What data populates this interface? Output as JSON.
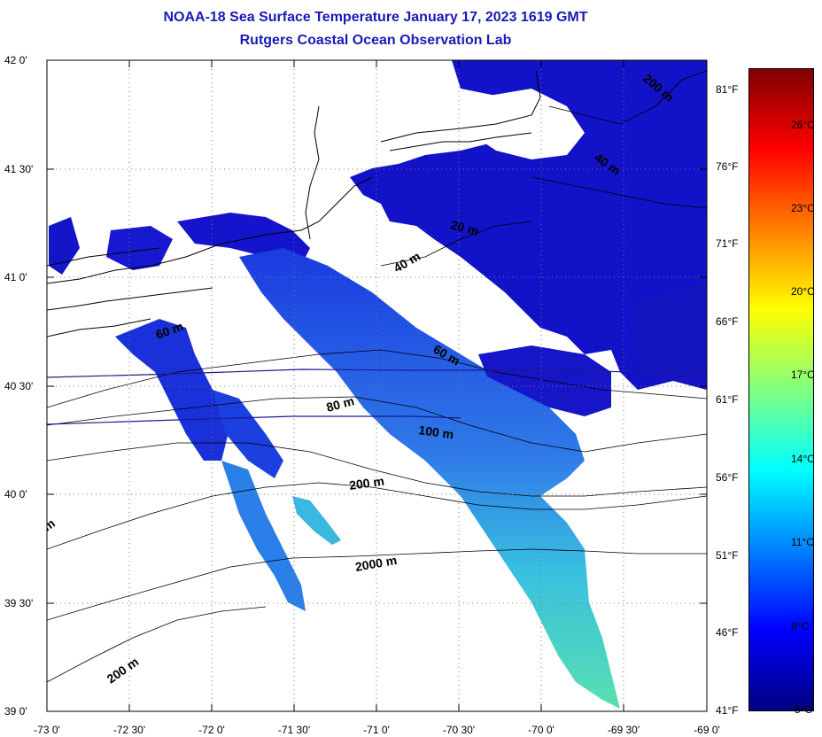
{
  "title": "NOAA-18 Sea Surface Temperature January 17, 2023 1619 GMT",
  "subtitle": "Rutgers Coastal Ocean Observation Lab",
  "lat_ticks": [
    "42 0'",
    "41 30'",
    "41 0'",
    "40 30'",
    "40 0'",
    "39 30'",
    "39 0'"
  ],
  "lon_ticks": [
    "-73 0'",
    "-72 30'",
    "-72 0'",
    "-71 30'",
    "-71 0'",
    "-70 30'",
    "-70 0'",
    "-69 30'",
    "-69 0'"
  ],
  "fahrenheit_ticks": [
    "81°F",
    "76°F",
    "71°F",
    "66°F",
    "61°F",
    "56°F",
    "51°F",
    "46°F",
    "41°F"
  ],
  "celsius_ticks": [
    "26°C",
    "23°C",
    "20°C",
    "17°C",
    "14°C",
    "11°C",
    "8°C",
    "5°C"
  ],
  "isobath_labels": [
    "200 m",
    "40 m",
    "20 m",
    "40 m",
    "60 m",
    "60 m",
    "80 m",
    "100 m",
    "200 m",
    "2000 m",
    "200 m",
    "m"
  ],
  "colors": {
    "title": "#1a1ab8",
    "cold": "#0a10c8",
    "cool": "#1a55e8",
    "mid": "#2cb0e0",
    "warm": "#4fd8b0",
    "colorbar_stops": [
      "#000080",
      "#0000ff",
      "#0080ff",
      "#00ffff",
      "#80ff80",
      "#ffff00",
      "#ff8000",
      "#ff0000",
      "#800000"
    ]
  }
}
